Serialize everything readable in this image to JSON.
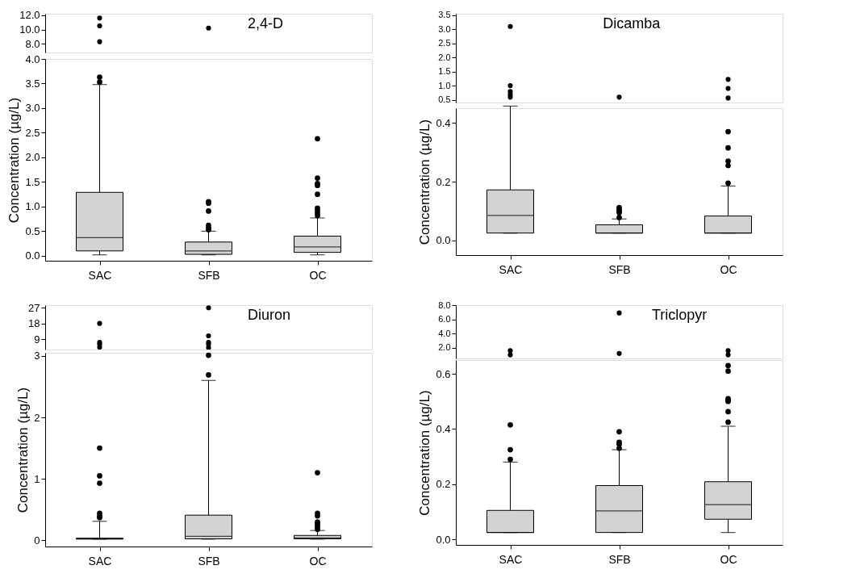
{
  "chart_data": [
    {
      "type": "scatter",
      "title": "2,4-D",
      "categories": [
        "SAC",
        "SFB",
        "OC"
      ],
      "tick_labels": "y",
      "marker": "circle",
      "ylim": [
        6.8,
        12.2
      ],
      "yticks": [
        {
          "value": 8,
          "label": "8.0"
        },
        {
          "value": 10,
          "label": "10.0"
        },
        {
          "value": 12,
          "label": "12.0"
        }
      ],
      "series": [
        {
          "color": "#000000",
          "x": [
            "SAC",
            "SAC",
            "SAC",
            "SFB"
          ],
          "values": [
            11.6,
            10.5,
            8.3,
            10.2
          ]
        }
      ]
    },
    {
      "type": "box",
      "ylabel": "Concentration (µg/L)",
      "categories": [
        "SAC",
        "SFB",
        "OC"
      ],
      "color": "#d3d3d3",
      "ylim": [
        -0.1,
        4.0
      ],
      "yticks": [
        {
          "value": 0,
          "label": "0.0"
        },
        0.5,
        {
          "value": 1,
          "label": "1.0"
        },
        1.5,
        {
          "value": 2,
          "label": "2.0"
        },
        2.5,
        {
          "value": 3,
          "label": "3.0"
        },
        3.5,
        {
          "value": 4,
          "label": "4.0"
        }
      ],
      "boxes": [
        {
          "low": 0.02,
          "q1": 0.1,
          "median": 0.37,
          "q3": 1.29,
          "high": 3.48,
          "outliers": [
            3.53,
            3.63
          ]
        },
        {
          "low": 0.02,
          "q1": 0.03,
          "median": 0.1,
          "q3": 0.28,
          "high": 0.5,
          "outliers": [
            0.53,
            0.57,
            0.62,
            0.91,
            1.07,
            1.1
          ]
        },
        {
          "low": 0.02,
          "q1": 0.07,
          "median": 0.18,
          "q3": 0.4,
          "high": 0.77,
          "outliers": [
            0.82,
            0.87,
            0.92,
            0.97,
            1.25,
            1.43,
            1.47,
            1.58,
            2.38
          ]
        }
      ]
    },
    {
      "type": "scatter",
      "title": "Dicamba",
      "categories": [
        "SAC",
        "SFB",
        "OC"
      ],
      "tick_labels": "y",
      "marker": "circle",
      "ylim": [
        0.4,
        3.55
      ],
      "yticks": [
        0.5,
        {
          "value": 1,
          "label": "1.0"
        },
        1.5,
        {
          "value": 2,
          "label": "2.0"
        },
        2.5,
        {
          "value": 3,
          "label": "3.0"
        },
        3.5
      ],
      "series": [
        {
          "color": "#000000",
          "x": [
            "SAC",
            "SAC",
            "SAC",
            "SAC",
            "SAC",
            "SFB",
            "OC",
            "OC",
            "OC"
          ],
          "values": [
            3.1,
            1.0,
            0.79,
            0.68,
            0.59,
            0.59,
            1.22,
            0.9,
            0.56
          ]
        }
      ]
    },
    {
      "type": "box",
      "ylabel": "Concentration (µg/L)",
      "categories": [
        "SAC",
        "SFB",
        "OC"
      ],
      "color": "#d3d3d3",
      "ylim": [
        -0.05,
        0.45
      ],
      "yticks": [
        {
          "value": 0,
          "label": "0.0"
        },
        0.2,
        0.4
      ],
      "boxes": [
        {
          "low": 0.025,
          "q1": 0.025,
          "median": 0.085,
          "q3": 0.172,
          "high": 0.457
        },
        {
          "low": 0.025,
          "q1": 0.025,
          "median": 0.025,
          "q3": 0.053,
          "high": 0.073,
          "outliers": [
            0.078,
            0.095,
            0.1,
            0.105,
            0.112
          ]
        },
        {
          "low": 0.025,
          "q1": 0.025,
          "median": 0.025,
          "q3": 0.083,
          "high": 0.185,
          "outliers": [
            0.195,
            0.255,
            0.27,
            0.315,
            0.37
          ]
        }
      ]
    },
    {
      "type": "scatter",
      "title": "Diuron",
      "categories": [
        "SAC",
        "SFB",
        "OC"
      ],
      "tick_labels": "y",
      "marker": "circle",
      "ylim": [
        3,
        28.5
      ],
      "yticks": [
        9,
        18,
        27
      ],
      "series": [
        {
          "color": "#000000",
          "x": [
            "SAC",
            "SAC",
            "SAC",
            "SAC",
            "SFB",
            "SFB",
            "SFB",
            "SFB",
            "SFB"
          ],
          "values": [
            18,
            7.1,
            6.0,
            4.3,
            27,
            10.9,
            7.1,
            6.0,
            4.1
          ]
        }
      ]
    },
    {
      "type": "box",
      "ylabel": "Concentration (µg/L)",
      "categories": [
        "SAC",
        "SFB",
        "OC"
      ],
      "color": "#d3d3d3",
      "ylim": [
        -0.1,
        3.05
      ],
      "yticks": [
        0,
        1,
        2,
        3
      ],
      "boxes": [
        {
          "low": 0.02,
          "q1": 0.02,
          "median": 0.03,
          "q3": 0.035,
          "high": 0.31,
          "outliers": [
            0.37,
            0.4,
            0.44,
            0.93,
            1.05,
            1.5
          ]
        },
        {
          "low": 0.02,
          "q1": 0.025,
          "median": 0.065,
          "q3": 0.41,
          "high": 2.6,
          "outliers": [
            2.69,
            3.01
          ]
        },
        {
          "low": 0.02,
          "q1": 0.025,
          "median": 0.04,
          "q3": 0.08,
          "high": 0.16,
          "outliers": [
            0.18,
            0.22,
            0.25,
            0.28,
            0.3,
            0.4,
            0.44,
            1.1
          ]
        }
      ]
    },
    {
      "type": "scatter",
      "title": "Triclopyr",
      "categories": [
        "SAC",
        "SFB",
        "OC"
      ],
      "tick_labels": "y",
      "marker": "circle",
      "ylim": [
        0.5,
        8.0
      ],
      "yticks": [
        {
          "value": 2,
          "label": "2.0"
        },
        {
          "value": 4,
          "label": "4.0"
        },
        {
          "value": 6,
          "label": "6.0"
        },
        {
          "value": 8,
          "label": "8.0"
        }
      ],
      "series": [
        {
          "color": "#000000",
          "x": [
            "SAC",
            "SAC",
            "SFB",
            "SFB",
            "OC",
            "OC"
          ],
          "values": [
            1.6,
            1.0,
            6.9,
            1.2,
            1.6,
            1.0
          ]
        }
      ]
    },
    {
      "type": "box",
      "ylabel": "Concentration (µg/L)",
      "categories": [
        "SAC",
        "SFB",
        "OC"
      ],
      "color": "#d3d3d3",
      "ylim": [
        -0.02,
        0.65
      ],
      "yticks": [
        {
          "value": 0,
          "label": "0.0"
        },
        0.2,
        0.4,
        0.6
      ],
      "boxes": [
        {
          "low": 0.025,
          "q1": 0.025,
          "median": 0.025,
          "q3": 0.105,
          "high": 0.28,
          "outliers": [
            0.29,
            0.325,
            0.415
          ]
        },
        {
          "low": 0.025,
          "q1": 0.025,
          "median": 0.103,
          "q3": 0.195,
          "high": 0.325,
          "outliers": [
            0.33,
            0.345,
            0.352,
            0.39
          ]
        },
        {
          "low": 0.025,
          "q1": 0.073,
          "median": 0.126,
          "q3": 0.209,
          "high": 0.41,
          "outliers": [
            0.425,
            0.463,
            0.5,
            0.505,
            0.51,
            0.61,
            0.63
          ]
        }
      ]
    }
  ]
}
